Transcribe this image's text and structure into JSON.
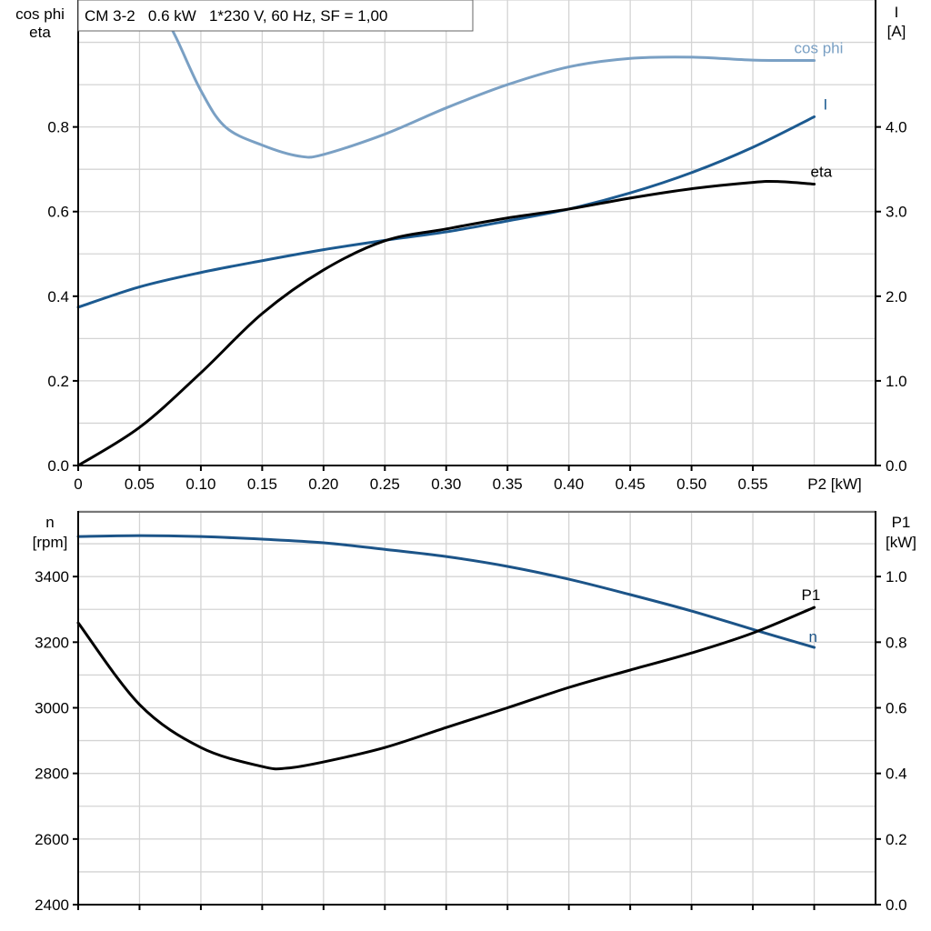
{
  "title_box": "CM 3-2   0.6 kW   1*230 V, 60 Hz, SF = 1,00",
  "colors": {
    "cos_phi": "#7aa0c4",
    "I": "#1c5a90",
    "eta": "#000000",
    "n": "#1c5488",
    "P1": "#000000",
    "grid": "#d4d4d4"
  },
  "chart_data": [
    {
      "type": "line",
      "xlabel": "P2 [kW]",
      "xlim": [
        0,
        0.65
      ],
      "x_ticks": [
        "0",
        "0.05",
        "0.10",
        "0.15",
        "0.20",
        "0.25",
        "0.30",
        "0.35",
        "0.40",
        "0.45",
        "0.50",
        "0.55"
      ],
      "ylabel_left": [
        "cos phi",
        "eta"
      ],
      "ylim_left": [
        0,
        1.1
      ],
      "y_ticks_left": [
        "0.0",
        "0.2",
        "0.4",
        "0.6",
        "0.8"
      ],
      "ylabel_right": [
        "I",
        "[A]"
      ],
      "ylim_right": [
        0,
        5.5
      ],
      "y_ticks_right": [
        "0.0",
        "1.0",
        "2.0",
        "3.0",
        "4.0"
      ],
      "grid": true,
      "series": [
        {
          "name": "cos phi",
          "axis": "left",
          "x": [
            0.064,
            0.08,
            0.1,
            0.12,
            0.15,
            0.18,
            0.2,
            0.25,
            0.3,
            0.35,
            0.4,
            0.45,
            0.5,
            0.55,
            0.6
          ],
          "y": [
            1.1,
            1.01,
            0.886,
            0.8,
            0.757,
            0.731,
            0.735,
            0.783,
            0.845,
            0.9,
            0.942,
            0.962,
            0.965,
            0.958,
            0.957
          ]
        },
        {
          "name": "I",
          "axis": "right",
          "x": [
            0,
            0.05,
            0.1,
            0.15,
            0.2,
            0.25,
            0.3,
            0.35,
            0.4,
            0.45,
            0.5,
            0.55,
            0.6
          ],
          "y": [
            1.87,
            2.11,
            2.28,
            2.42,
            2.55,
            2.66,
            2.76,
            2.89,
            3.03,
            3.22,
            3.46,
            3.76,
            4.12
          ]
        },
        {
          "name": "eta",
          "axis": "left",
          "x": [
            0,
            0.05,
            0.1,
            0.15,
            0.2,
            0.25,
            0.3,
            0.35,
            0.4,
            0.45,
            0.5,
            0.55,
            0.57,
            0.6
          ],
          "y": [
            0,
            0.09,
            0.219,
            0.359,
            0.462,
            0.531,
            0.559,
            0.585,
            0.606,
            0.632,
            0.654,
            0.669,
            0.671,
            0.665
          ]
        }
      ]
    },
    {
      "type": "line",
      "xlim": [
        0,
        0.65
      ],
      "ylabel_left": [
        "n",
        "[rpm]"
      ],
      "ylim_left": [
        2400,
        3600
      ],
      "y_ticks_left": [
        "2400",
        "2600",
        "2800",
        "3000",
        "3200",
        "3400"
      ],
      "ylabel_right": [
        "P1",
        "[kW]"
      ],
      "ylim_right": [
        0,
        1.2
      ],
      "y_ticks_right": [
        "0.0",
        "0.2",
        "0.4",
        "0.6",
        "0.8",
        "1.0"
      ],
      "grid": true,
      "series": [
        {
          "name": "n",
          "axis": "left",
          "x": [
            0,
            0.05,
            0.1,
            0.15,
            0.2,
            0.25,
            0.3,
            0.35,
            0.4,
            0.45,
            0.5,
            0.55,
            0.6
          ],
          "y": [
            3522,
            3525,
            3522,
            3514,
            3503,
            3483,
            3461,
            3431,
            3392,
            3345,
            3295,
            3239,
            3184
          ]
        },
        {
          "name": "P1",
          "axis": "right",
          "x": [
            0,
            0.05,
            0.1,
            0.15,
            0.17,
            0.2,
            0.25,
            0.3,
            0.35,
            0.4,
            0.45,
            0.5,
            0.55,
            0.6
          ],
          "y": [
            0.859,
            0.61,
            0.479,
            0.421,
            0.416,
            0.435,
            0.479,
            0.54,
            0.6,
            0.662,
            0.715,
            0.767,
            0.828,
            0.906
          ]
        }
      ]
    }
  ]
}
